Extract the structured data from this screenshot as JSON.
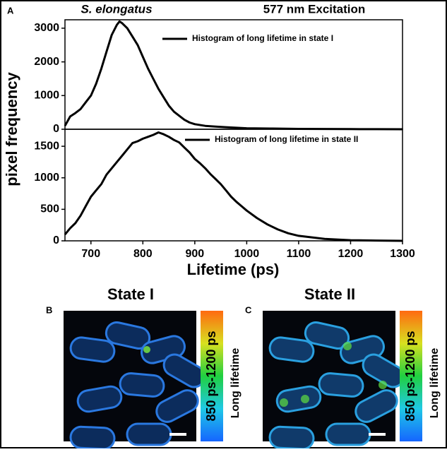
{
  "chart_data": [
    {
      "type": "line",
      "panel_label": "A",
      "title": "S. elongatus",
      "subtitle": "577 nm Excitation",
      "x": [
        650,
        660,
        670,
        680,
        690,
        700,
        710,
        720,
        730,
        740,
        750,
        755,
        760,
        770,
        780,
        790,
        800,
        810,
        820,
        830,
        840,
        850,
        860,
        870,
        880,
        890,
        900,
        920,
        940,
        960,
        980,
        1000,
        1050,
        1100,
        1150,
        1200,
        1250,
        1300
      ],
      "series": [
        {
          "name": "Histogram of long lifetime in state I",
          "color": "#000000",
          "values": [
            100,
            380,
            480,
            600,
            800,
            1000,
            1350,
            1800,
            2300,
            2800,
            3100,
            3200,
            3150,
            3000,
            2750,
            2500,
            2150,
            1800,
            1500,
            1200,
            950,
            700,
            520,
            400,
            280,
            200,
            150,
            100,
            80,
            60,
            45,
            30,
            20,
            10,
            8,
            5,
            3,
            0
          ]
        }
      ],
      "xlim": [
        650,
        1300
      ],
      "ylim": [
        0,
        3250
      ],
      "yticks": [
        0,
        1000,
        2000,
        3000
      ]
    },
    {
      "type": "line",
      "x": [
        650,
        660,
        670,
        680,
        690,
        700,
        710,
        720,
        730,
        740,
        750,
        760,
        770,
        780,
        790,
        800,
        810,
        820,
        830,
        840,
        850,
        860,
        870,
        880,
        890,
        900,
        910,
        920,
        930,
        940,
        950,
        960,
        970,
        980,
        990,
        1000,
        1020,
        1040,
        1060,
        1080,
        1100,
        1150,
        1200,
        1250,
        1300
      ],
      "series": [
        {
          "name": "Histogram of long lifetime in state II",
          "color": "#000000",
          "values": [
            100,
            200,
            280,
            400,
            550,
            700,
            800,
            900,
            1050,
            1150,
            1250,
            1350,
            1450,
            1550,
            1580,
            1620,
            1650,
            1680,
            1720,
            1690,
            1650,
            1600,
            1560,
            1480,
            1400,
            1300,
            1230,
            1150,
            1060,
            980,
            900,
            800,
            700,
            620,
            550,
            480,
            360,
            260,
            180,
            120,
            80,
            30,
            10,
            5,
            0
          ]
        }
      ],
      "xlim": [
        650,
        1300
      ],
      "xticks": [
        700,
        800,
        900,
        1000,
        1100,
        1200,
        1300
      ],
      "ylim": [
        0,
        1770
      ],
      "yticks": [
        0,
        500,
        1000,
        1500
      ],
      "x_label": "Lifetime (ps)",
      "y_label": "pixel frequency"
    }
  ],
  "images": [
    {
      "panel_label": "B",
      "title": "State I",
      "colorbar_label": "850 ps-1200 ps",
      "side_label": "Long  lifetime"
    },
    {
      "panel_label": "C",
      "title": "State II",
      "colorbar_label": "850 ps-1200 ps",
      "side_label": "Long  lifetime"
    }
  ]
}
